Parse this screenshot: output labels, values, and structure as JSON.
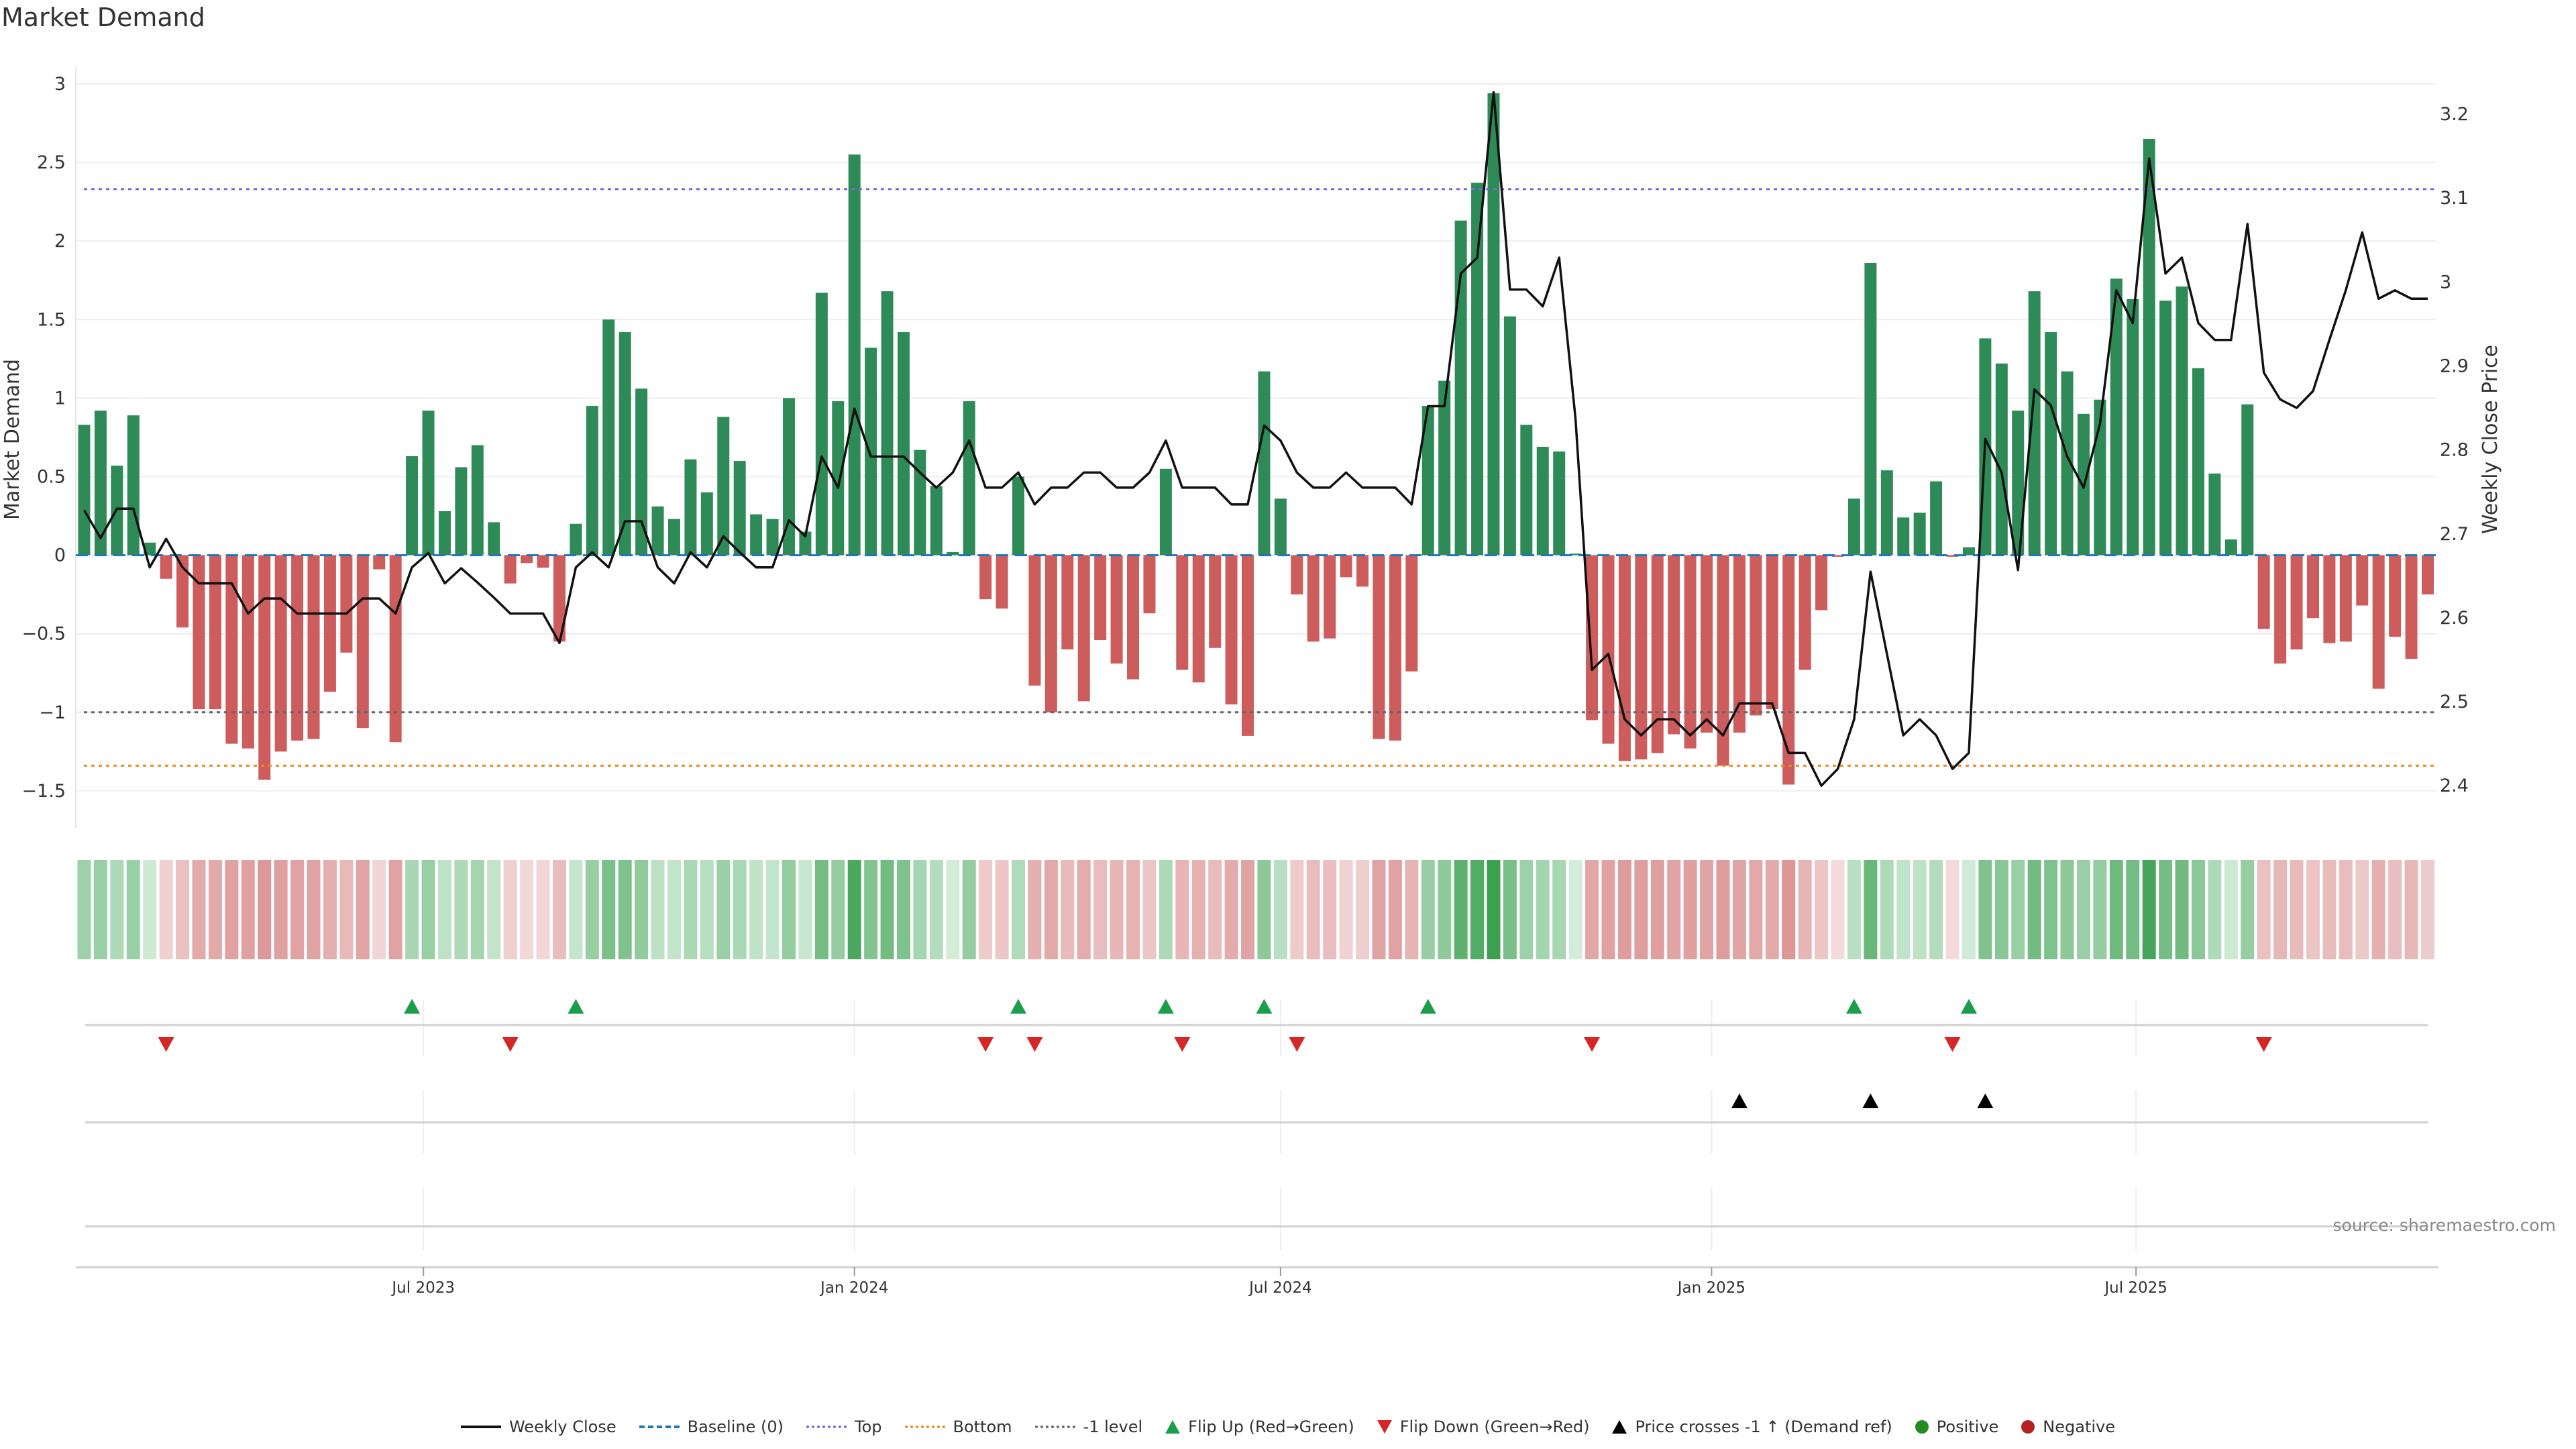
{
  "title": "Market Demand",
  "source": "source: sharemaestro.com",
  "colors": {
    "positive_bar": "#2e8b57",
    "negative_bar": "#cd5c5c",
    "price_line": "#111111",
    "baseline": "#1f77b4",
    "top": "#7a68d8",
    "bottom": "#ee8a1c",
    "minus1": "#666666",
    "flip_up": "#1a9e4a",
    "flip_down": "#d62728",
    "cross": "#000000",
    "positive_dot": "#228b22",
    "negative_dot": "#b22222"
  },
  "legend": [
    {
      "label": "Weekly Close",
      "kind": "line",
      "color": "#111111"
    },
    {
      "label": "Baseline (0)",
      "kind": "dash",
      "color": "#1f77b4"
    },
    {
      "label": "Top",
      "kind": "dot",
      "color": "#7a68d8"
    },
    {
      "label": "Bottom",
      "kind": "dot",
      "color": "#ee8a1c"
    },
    {
      "label": "-1 level",
      "kind": "dot",
      "color": "#666666"
    },
    {
      "label": "Flip Up (Red→Green)",
      "kind": "tri-up",
      "color": "#1a9e4a"
    },
    {
      "label": "Flip Down (Green→Red)",
      "kind": "tri-down",
      "color": "#d62728"
    },
    {
      "label": "Price crosses -1 ↑ (Demand ref)",
      "kind": "tri-up",
      "color": "#000000"
    },
    {
      "label": "Positive",
      "kind": "dot-circle",
      "color": "#228b22"
    },
    {
      "label": "Negative",
      "kind": "dot-circle",
      "color": "#b22222"
    }
  ],
  "chart_data": {
    "type": "bar",
    "title": "Market Demand",
    "ylabel": "Market Demand",
    "y2label": "Weekly Close Price",
    "xlabel": "",
    "start_week": "2023-02-06",
    "frequency": "weekly",
    "ylim": [
      -1.7,
      3.1
    ],
    "y2lim": [
      2.36,
      3.27
    ],
    "yticks": [
      "3",
      "2.5",
      "2",
      "1.5",
      "1",
      "0.5",
      "0",
      "−0.5",
      "−1",
      "−1.5"
    ],
    "ytick_values": [
      3,
      2.5,
      2,
      1.5,
      1,
      0.5,
      0,
      -0.5,
      -1,
      -1.5
    ],
    "y2ticks": [
      "3.2",
      "3.1",
      "3",
      "2.9",
      "2.8",
      "2.7",
      "2.6",
      "2.5",
      "2.4"
    ],
    "y2tick_values": [
      3.2,
      3.1,
      3.0,
      2.9,
      2.8,
      2.7,
      2.6,
      2.5,
      2.4
    ],
    "xticks": [
      {
        "label": "Jul 2023",
        "week_index": 21.7
      },
      {
        "label": "Jan 2024",
        "week_index": 48.0
      },
      {
        "label": "Jul 2024",
        "week_index": 74.0
      },
      {
        "label": "Jan 2025",
        "week_index": 100.3
      },
      {
        "label": "Jul 2025",
        "week_index": 126.2
      }
    ],
    "levels": {
      "baseline": 0,
      "top": 2.33,
      "bottom": -1.34,
      "minus1": -1
    },
    "grid": true,
    "legend_position": "bottom",
    "series": [
      {
        "name": "Market Demand",
        "type": "bar",
        "values": [
          0.83,
          0.92,
          0.57,
          0.89,
          0.08,
          -0.15,
          -0.46,
          -0.98,
          -0.98,
          -1.2,
          -1.23,
          -1.43,
          -1.25,
          -1.18,
          -1.17,
          -0.87,
          -0.62,
          -1.1,
          -0.09,
          -1.19,
          0.63,
          0.92,
          0.28,
          0.56,
          0.7,
          0.21,
          -0.18,
          -0.05,
          -0.08,
          -0.55,
          0.2,
          0.95,
          1.5,
          1.42,
          1.06,
          0.31,
          0.23,
          0.61,
          0.4,
          0.88,
          0.6,
          0.26,
          0.23,
          1.0,
          0.15,
          1.67,
          0.98,
          2.55,
          1.32,
          1.68,
          1.42,
          0.67,
          0.44,
          0.02,
          0.98,
          -0.28,
          -0.34,
          0.5,
          -0.83,
          -1.0,
          -0.6,
          -0.93,
          -0.54,
          -0.69,
          -0.79,
          -0.37,
          0.55,
          -0.73,
          -0.81,
          -0.59,
          -0.95,
          -1.15,
          1.17,
          0.36,
          -0.25,
          -0.55,
          -0.53,
          -0.14,
          -0.2,
          -1.17,
          -1.18,
          -0.74,
          0.95,
          1.11,
          2.13,
          2.37,
          2.94,
          1.52,
          0.83,
          0.69,
          0.66,
          0.01,
          -1.05,
          -1.2,
          -1.31,
          -1.3,
          -1.26,
          -1.14,
          -1.23,
          -1.13,
          -1.34,
          -1.13,
          -1.02,
          -0.98,
          -1.46,
          -0.73,
          -0.35,
          -0.01,
          0.36,
          1.86,
          0.54,
          0.24,
          0.27,
          0.47,
          -0.01,
          0.05,
          1.38,
          1.22,
          0.92,
          1.68,
          1.42,
          1.17,
          0.9,
          0.99,
          1.76,
          1.63,
          2.65,
          1.62,
          1.71,
          1.19,
          0.52,
          0.1,
          0.96,
          -0.47,
          -0.69,
          -0.6,
          -0.4,
          -0.56,
          -0.55,
          -0.32,
          -0.85,
          -0.52,
          -0.66,
          -0.25
        ]
      },
      {
        "name": "Weekly Close",
        "type": "line",
        "axis": "right",
        "values": [
          2.728,
          2.695,
          2.73,
          2.73,
          2.66,
          2.694,
          2.66,
          2.641,
          2.641,
          2.641,
          2.605,
          2.623,
          2.623,
          2.605,
          2.605,
          2.605,
          2.605,
          2.623,
          2.623,
          2.605,
          2.66,
          2.677,
          2.641,
          2.659,
          2.642,
          2.624,
          2.605,
          2.605,
          2.605,
          2.57,
          2.66,
          2.678,
          2.66,
          2.715,
          2.715,
          2.66,
          2.641,
          2.678,
          2.66,
          2.697,
          2.678,
          2.66,
          2.66,
          2.716,
          2.697,
          2.792,
          2.755,
          2.849,
          2.792,
          2.792,
          2.792,
          2.773,
          2.755,
          2.773,
          2.811,
          2.755,
          2.755,
          2.773,
          2.735,
          2.755,
          2.755,
          2.773,
          2.773,
          2.755,
          2.755,
          2.773,
          2.811,
          2.755,
          2.755,
          2.755,
          2.735,
          2.735,
          2.829,
          2.811,
          2.773,
          2.755,
          2.755,
          2.773,
          2.755,
          2.755,
          2.755,
          2.735,
          2.852,
          2.852,
          3.01,
          3.029,
          3.226,
          2.991,
          2.991,
          2.971,
          3.029,
          2.837,
          2.538,
          2.557,
          2.479,
          2.46,
          2.479,
          2.479,
          2.46,
          2.479,
          2.46,
          2.498,
          2.498,
          2.498,
          2.439,
          2.439,
          2.4,
          2.42,
          2.479,
          2.655,
          2.557,
          2.46,
          2.479,
          2.46,
          2.42,
          2.439,
          2.813,
          2.773,
          2.657,
          2.872,
          2.853,
          2.792,
          2.755,
          2.831,
          2.99,
          2.951,
          3.147,
          3.01,
          3.029,
          2.951,
          2.931,
          2.931,
          3.069,
          2.892,
          2.86,
          2.85,
          2.87,
          2.931,
          2.99,
          3.059,
          2.98,
          2.99,
          2.98,
          2.98
        ]
      }
    ],
    "flip_up_weeks": [
      21,
      31,
      58,
      67,
      73,
      83,
      109,
      116
    ],
    "flip_down_weeks": [
      6,
      27,
      56,
      59,
      68,
      75,
      93,
      115,
      134
    ],
    "price_cross_weeks": [
      102,
      110,
      117
    ]
  }
}
